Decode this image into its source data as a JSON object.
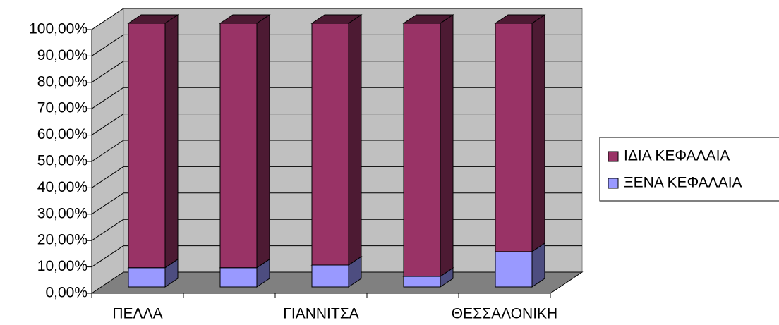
{
  "chart_data": {
    "type": "stacked_bar_3d",
    "categories": [
      "ΠΕΛΛΑ",
      null,
      "ΓΙΑΝΝΙΤΣΑ",
      null,
      "ΘΕΣΣΑΛΟΝΙΚΗ"
    ],
    "series": [
      {
        "name": "ΞΕΝΑ ΚΕΦΑΛΑΙΑ",
        "color": "#9999ff",
        "values": [
          7.3,
          7.3,
          8.3,
          4.0,
          13.4
        ]
      },
      {
        "name": "ΙΔΙΑ ΚΕΦΑΛΑΙΑ",
        "color": "#993366",
        "values": [
          92.7,
          92.7,
          91.7,
          96.0,
          86.6
        ]
      }
    ],
    "ylim": [
      0,
      100
    ],
    "yticks": [
      {
        "value": 0,
        "label": "0,00%"
      },
      {
        "value": 10,
        "label": "10,00%"
      },
      {
        "value": 20,
        "label": "20,00%"
      },
      {
        "value": 30,
        "label": "30,00%"
      },
      {
        "value": 40,
        "label": "40,00%"
      },
      {
        "value": 50,
        "label": "50,00%"
      },
      {
        "value": 60,
        "label": "60,00%"
      },
      {
        "value": 70,
        "label": "70,00%"
      },
      {
        "value": 80,
        "label": "80,00%"
      },
      {
        "value": 90,
        "label": "90,00%"
      },
      {
        "value": 100,
        "label": "100,00%"
      }
    ],
    "grid": true
  }
}
